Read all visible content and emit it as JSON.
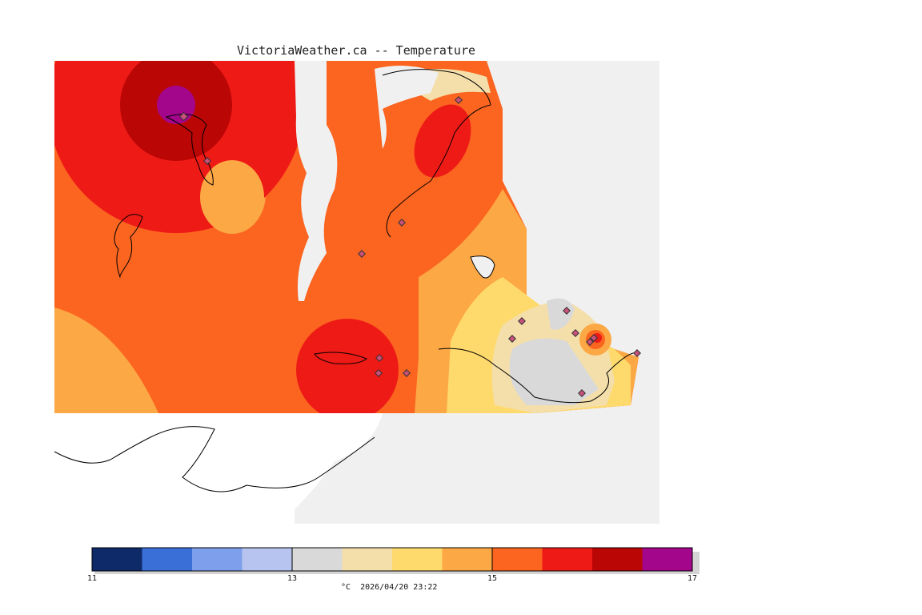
{
  "title": "VictoriaWeather.ca -- Temperature",
  "legend": {
    "unit_and_time": "°C  2026/04/20 23:22",
    "min": 11,
    "max": 17,
    "ticks": [
      "11",
      "13",
      "15",
      "17"
    ],
    "tick_values": [
      11,
      13,
      15,
      17
    ],
    "bins": [
      {
        "from": 11.0,
        "to": 11.5,
        "color": "#0f2a68"
      },
      {
        "from": 11.5,
        "to": 12.0,
        "color": "#3a6fd8"
      },
      {
        "from": 12.0,
        "to": 12.5,
        "color": "#7ea0ec"
      },
      {
        "from": 12.5,
        "to": 13.0,
        "color": "#b8c4f0"
      },
      {
        "from": 13.0,
        "to": 13.5,
        "color": "#d9d9d9"
      },
      {
        "from": 13.5,
        "to": 14.0,
        "color": "#f4dfaa"
      },
      {
        "from": 14.0,
        "to": 14.5,
        "color": "#fed96c"
      },
      {
        "from": 14.5,
        "to": 15.0,
        "color": "#fca844"
      },
      {
        "from": 15.0,
        "to": 15.5,
        "color": "#fb6520"
      },
      {
        "from": 15.5,
        "to": 16.0,
        "color": "#ee1a16"
      },
      {
        "from": 16.0,
        "to": 16.5,
        "color": "#bb0606"
      },
      {
        "from": 16.5,
        "to": 17.0,
        "color": "#a3068a"
      }
    ]
  },
  "colors": {
    "background_land_outside": "#f0f0f0",
    "station_marker": "#c8507a",
    "coastline": "#000000"
  },
  "stations_count": 16
}
